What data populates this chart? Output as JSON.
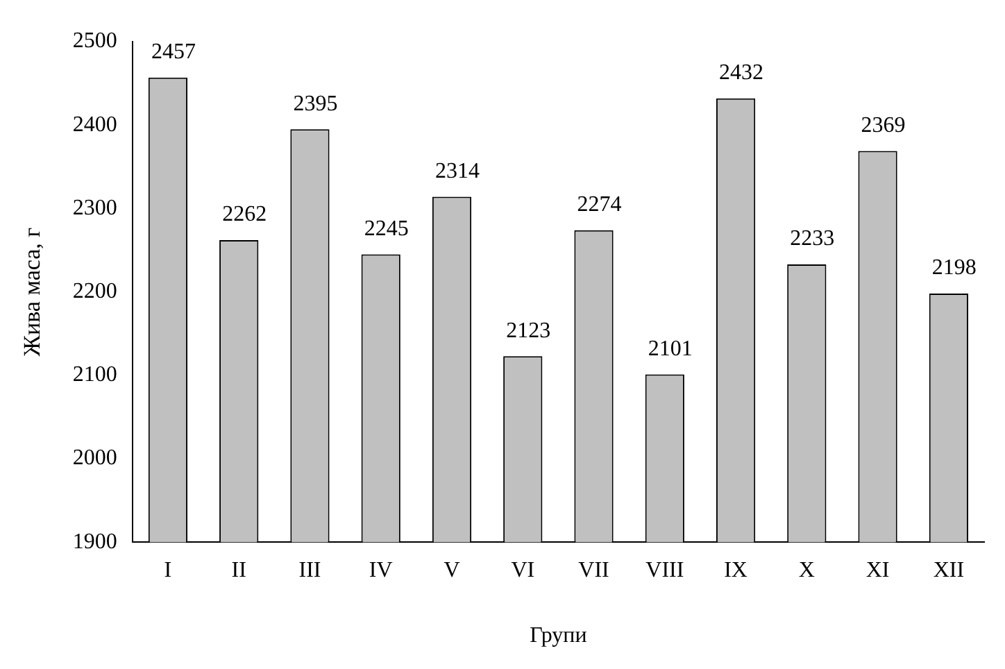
{
  "chart_data": {
    "type": "bar",
    "xlabel": "Групи",
    "ylabel": "Жива маса, г",
    "categories": [
      "I",
      "II",
      "III",
      "IV",
      "V",
      "VI",
      "VII",
      "VIII",
      "IX",
      "X",
      "XI",
      "XII"
    ],
    "values": [
      2457,
      2262,
      2395,
      2245,
      2314,
      2123,
      2274,
      2101,
      2432,
      2233,
      2369,
      2198
    ],
    "color": "#c0c0c0",
    "ylim": [
      1900,
      2500
    ],
    "yticks": [
      1900,
      2000,
      2100,
      2200,
      2300,
      2400,
      2500
    ],
    "grid": false,
    "legend": false,
    "data_labels": true
  }
}
